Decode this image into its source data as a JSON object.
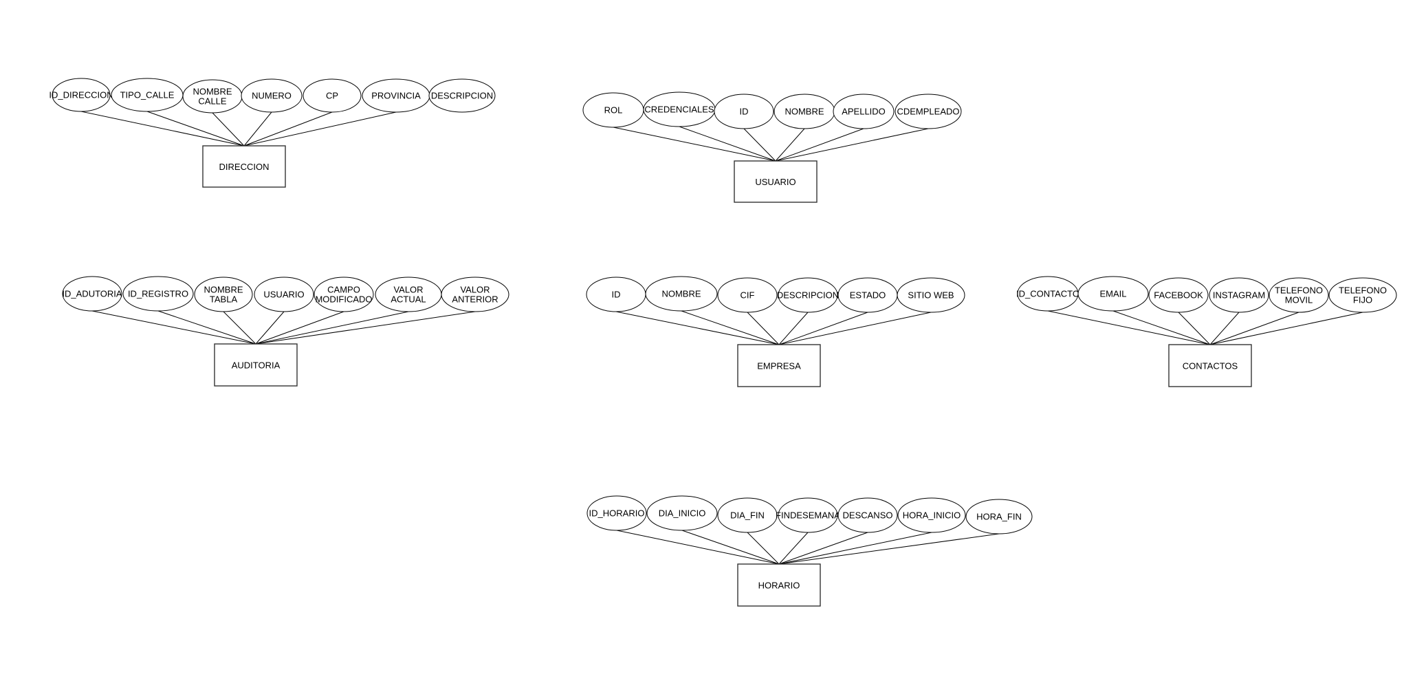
{
  "diagram": {
    "title": "",
    "entities": [
      {
        "name": "DIRECCION",
        "attributes": [
          [
            "ID_DIRECCION"
          ],
          [
            "TIPO_CALLE"
          ],
          [
            "NOMBRE",
            "CALLE"
          ],
          [
            "NUMERO"
          ],
          [
            "CP"
          ],
          [
            "PROVINCIA"
          ],
          [
            "DESCRIPCION"
          ]
        ],
        "attribute_connected": [
          true,
          true,
          true,
          true,
          true,
          true,
          false
        ]
      },
      {
        "name": "USUARIO",
        "attributes": [
          [
            "ROL"
          ],
          [
            "CREDENCIALES"
          ],
          [
            "ID"
          ],
          [
            "NOMBRE"
          ],
          [
            "APELLIDO"
          ],
          [
            "CDEMPLEADO"
          ]
        ],
        "attribute_connected": [
          true,
          true,
          true,
          true,
          true,
          true
        ]
      },
      {
        "name": "AUDITORIA",
        "attributes": [
          [
            "ID_ADUTORIA"
          ],
          [
            "ID_REGISTRO"
          ],
          [
            "NOMBRE",
            "TABLA"
          ],
          [
            "USUARIO"
          ],
          [
            "CAMPO",
            "MODIFICADO"
          ],
          [
            "VALOR",
            "ACTUAL"
          ],
          [
            "VALOR",
            "ANTERIOR"
          ]
        ],
        "attribute_connected": [
          true,
          true,
          true,
          true,
          true,
          true,
          true
        ]
      },
      {
        "name": "EMPRESA",
        "attributes": [
          [
            "ID"
          ],
          [
            "NOMBRE"
          ],
          [
            "CIF"
          ],
          [
            "DESCRIPCION"
          ],
          [
            "ESTADO"
          ],
          [
            "SITIO WEB"
          ]
        ],
        "attribute_connected": [
          true,
          true,
          true,
          true,
          true,
          true
        ]
      },
      {
        "name": "CONTACTOS",
        "attributes": [
          [
            "ID_CONTACTO"
          ],
          [
            "EMAIL"
          ],
          [
            "FACEBOOK"
          ],
          [
            "INSTAGRAM"
          ],
          [
            "TELEFONO",
            "MOVIL"
          ],
          [
            "TELEFONO",
            "FIJO"
          ]
        ],
        "attribute_connected": [
          true,
          true,
          true,
          true,
          true,
          true
        ]
      },
      {
        "name": "HORARIO",
        "attributes": [
          [
            "ID_HORARIO"
          ],
          [
            "DIA_INICIO"
          ],
          [
            "DIA_FIN"
          ],
          [
            "FINDESEMANA"
          ],
          [
            "DESCANSO"
          ],
          [
            "HORA_INICIO"
          ],
          [
            "HORA_FIN"
          ]
        ],
        "attribute_connected": [
          true,
          true,
          true,
          true,
          true,
          true,
          true
        ]
      }
    ]
  }
}
